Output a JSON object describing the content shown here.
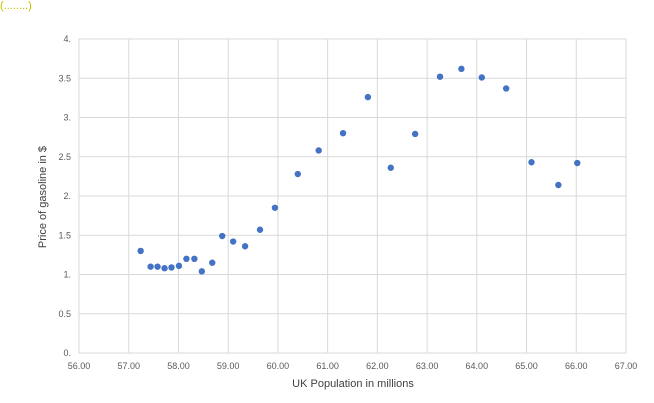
{
  "header": {
    "fragment": "(........)"
  },
  "chart_data": {
    "type": "scatter",
    "title": "",
    "xlabel": "UK Population in millions",
    "ylabel": "Price of gasoline in $",
    "xlim": [
      56,
      67
    ],
    "ylim": [
      0,
      4
    ],
    "x_ticks": [
      "56.00",
      "57.00",
      "58.00",
      "59.00",
      "60.00",
      "61.00",
      "62.00",
      "63.00",
      "64.00",
      "65.00",
      "66.00",
      "67.00"
    ],
    "y_ticks": [
      "0.",
      "0.5",
      "1.",
      "1.5",
      "2.",
      "2.5",
      "3.",
      "3.5",
      "4."
    ],
    "grid": true,
    "series": [
      {
        "color": "#4472c4",
        "points": [
          [
            57.24,
            1.3
          ],
          [
            57.44,
            1.1
          ],
          [
            57.58,
            1.1
          ],
          [
            57.72,
            1.08
          ],
          [
            57.86,
            1.09
          ],
          [
            58.01,
            1.11
          ],
          [
            58.16,
            1.2
          ],
          [
            58.32,
            1.2
          ],
          [
            58.47,
            1.04
          ],
          [
            58.68,
            1.15
          ],
          [
            58.88,
            1.49
          ],
          [
            59.1,
            1.42
          ],
          [
            59.34,
            1.36
          ],
          [
            59.64,
            1.57
          ],
          [
            59.94,
            1.85
          ],
          [
            60.4,
            2.28
          ],
          [
            60.82,
            2.58
          ],
          [
            61.31,
            2.8
          ],
          [
            61.81,
            3.26
          ],
          [
            62.27,
            2.36
          ],
          [
            62.76,
            2.79
          ],
          [
            63.26,
            3.52
          ],
          [
            63.69,
            3.62
          ],
          [
            64.1,
            3.51
          ],
          [
            64.59,
            3.37
          ],
          [
            65.1,
            2.43
          ],
          [
            65.64,
            2.14
          ],
          [
            66.02,
            2.42
          ]
        ]
      }
    ]
  }
}
